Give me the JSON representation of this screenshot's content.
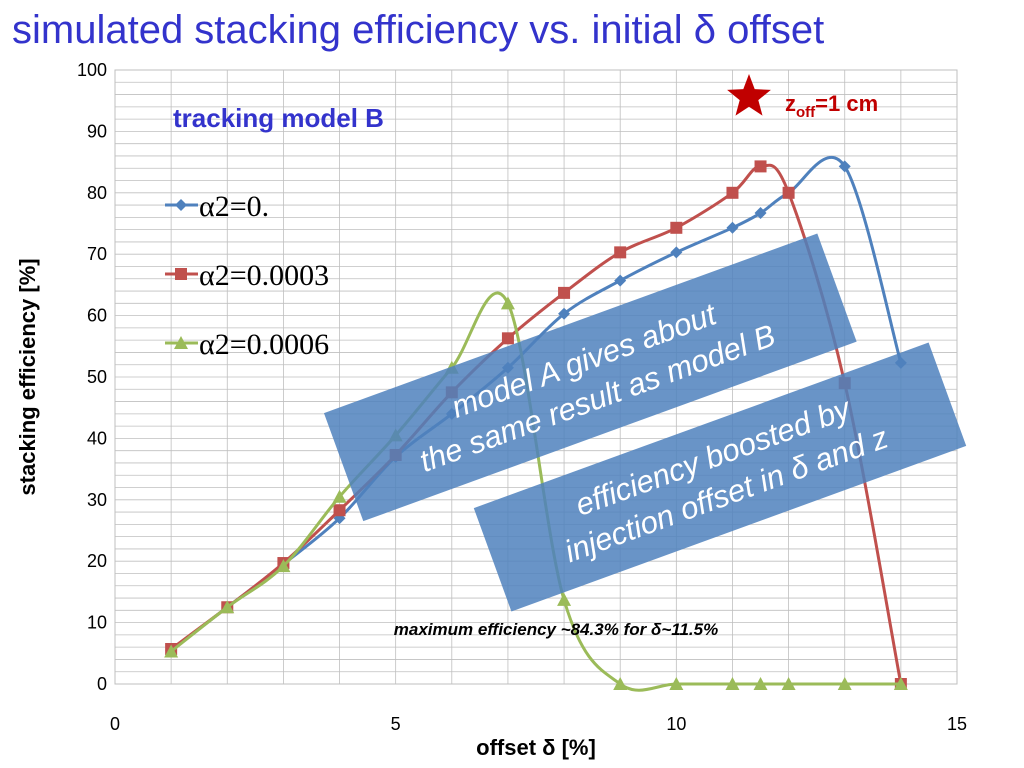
{
  "slide_title": "simulated stacking efficiency vs. initial δ offset",
  "chart_data": {
    "type": "line",
    "title": "",
    "xlabel": "offset δ [%]",
    "ylabel": "stacking efficiency [%]",
    "xlim": [
      0,
      15
    ],
    "ylim": [
      0,
      100
    ],
    "x_ticks": [
      0,
      5,
      10,
      15
    ],
    "y_ticks": [
      0,
      10,
      20,
      30,
      40,
      50,
      60,
      70,
      80,
      90,
      100
    ],
    "grid": true,
    "legend_position": "left",
    "series": [
      {
        "name": "α2=0.",
        "color": "#4f81bd",
        "marker": "diamond",
        "points": [
          [
            1,
            5.5
          ],
          [
            2,
            12.5
          ],
          [
            3,
            19.5
          ],
          [
            4,
            27
          ],
          [
            5,
            37
          ],
          [
            6,
            44
          ],
          [
            7,
            51.5
          ],
          [
            8,
            60.3
          ],
          [
            9,
            65.7
          ],
          [
            10,
            70.3
          ],
          [
            11,
            74.3
          ],
          [
            11.5,
            76.7
          ],
          [
            12,
            80
          ],
          [
            13,
            84.3
          ],
          [
            14,
            52.3
          ]
        ]
      },
      {
        "name": "α2=0.0003",
        "color": "#c0504d",
        "marker": "square",
        "points": [
          [
            1,
            5.7
          ],
          [
            2,
            12.5
          ],
          [
            3,
            19.7
          ],
          [
            4,
            28.3
          ],
          [
            5,
            37.3
          ],
          [
            6,
            47.5
          ],
          [
            7,
            56.3
          ],
          [
            8,
            63.7
          ],
          [
            9,
            70.3
          ],
          [
            10,
            74.3
          ],
          [
            11,
            80
          ],
          [
            11.5,
            84.3
          ],
          [
            12,
            80
          ],
          [
            13,
            49
          ],
          [
            14,
            0
          ]
        ]
      },
      {
        "name": "α2=0.0006",
        "color": "#9bbb59",
        "marker": "triangle",
        "points": [
          [
            1,
            5.3
          ],
          [
            2,
            12.5
          ],
          [
            3,
            19.2
          ],
          [
            4,
            30.5
          ],
          [
            5,
            40.5
          ],
          [
            6,
            51.5
          ],
          [
            7,
            62
          ],
          [
            8,
            13.7
          ],
          [
            9,
            0
          ],
          [
            10,
            0
          ],
          [
            11,
            0
          ],
          [
            11.5,
            0
          ],
          [
            12,
            0
          ],
          [
            13,
            0
          ],
          [
            14,
            0
          ]
        ]
      }
    ],
    "annotations": {
      "model_label": "tracking model B",
      "zoff_prefix": "z",
      "zoff_subscript": "off",
      "zoff_suffix": "=1 cm",
      "max_note": "maximum efficiency ~84.3% for δ~11.5%",
      "box1_lines": [
        "model A gives about",
        "the same result as model B"
      ],
      "box2_lines": [
        "efficiency boosted by",
        "injection offset in δ and z"
      ]
    }
  },
  "colors": {
    "title": "#3333cc",
    "note_box": "#4f81bd",
    "star": "#c00000"
  }
}
